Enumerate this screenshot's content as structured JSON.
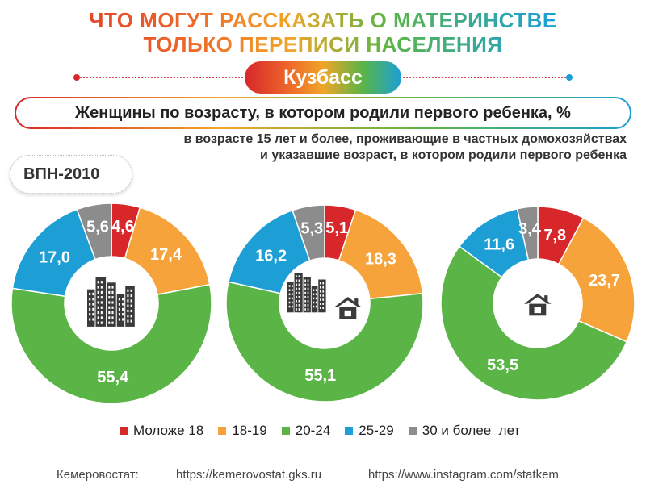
{
  "header": {
    "title_line1": "ЧТО МОГУТ РАССКАЗАТЬ О МАТЕРИНСТВЕ",
    "title_line2": "ТОЛЬКО ПЕРЕПИСИ НАСЕЛЕНИЯ",
    "region": "Кузбасс",
    "subtitle": "Женщины по возрасту, в котором родили первого ребенка, %",
    "note_line1": "в возрасте 15 лет и более, проживающие в частных домохозяйствах",
    "note_line2": "и указавшие возраст, в котором родили первого ребенка",
    "census": "ВПН-2010"
  },
  "legend": [
    {
      "label": "Моложе 18",
      "color": "#d7272b"
    },
    {
      "label": "18-19",
      "color": "#f5a33a"
    },
    {
      "label": "20-24",
      "color": "#5bb546"
    },
    {
      "label": "25-29",
      "color": "#1d9fd6"
    },
    {
      "label": "30 и более  лет",
      "color": "#8c8c8c"
    }
  ],
  "chart_data": [
    {
      "type": "pie",
      "icon": "city-buildings-icon",
      "categories": [
        "Моложе 18",
        "18-19",
        "20-24",
        "25-29",
        "30 и более  лет"
      ],
      "values": [
        4.6,
        17.4,
        55.4,
        17.0,
        5.6
      ],
      "labels": [
        "4,6",
        "17,4",
        "55,4",
        "17,0",
        "5,6"
      ]
    },
    {
      "type": "pie",
      "icon": "city-and-house-icon",
      "categories": [
        "Моложе 18",
        "18-19",
        "20-24",
        "25-29",
        "30 и более  лет"
      ],
      "values": [
        5.1,
        18.3,
        55.1,
        16.2,
        5.3
      ],
      "labels": [
        "5,1",
        "18,3",
        "55,1",
        "16,2",
        "5,3"
      ]
    },
    {
      "type": "pie",
      "icon": "house-icon",
      "categories": [
        "Моложе 18",
        "18-19",
        "20-24",
        "25-29",
        "30 и более  лет"
      ],
      "values": [
        7.8,
        23.7,
        53.5,
        11.6,
        3.4
      ],
      "labels": [
        "7,8",
        "23,7",
        "53,5",
        "11,6",
        "3,4"
      ]
    }
  ],
  "footer": {
    "source": "Кемеровостат:",
    "site": "https://kemerovostat.gks.ru",
    "instagram": "https://www.instagram.com/statkem"
  }
}
